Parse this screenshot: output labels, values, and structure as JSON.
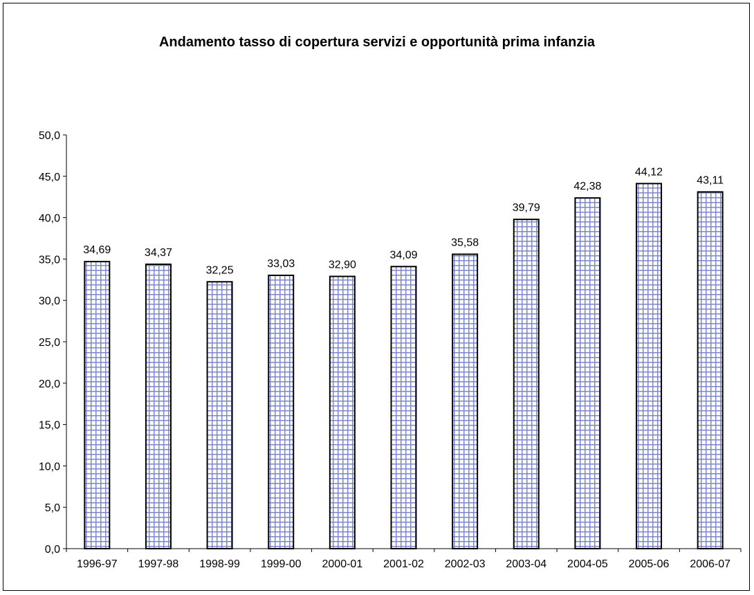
{
  "chart_data": {
    "type": "bar",
    "title": "Andamento tasso di copertura servizi e opportunità prima infanzia",
    "xlabel": "",
    "ylabel": "",
    "categories": [
      "1996-97",
      "1997-98",
      "1998-99",
      "1999-00",
      "2000-01",
      "2001-02",
      "2002-03",
      "2003-04",
      "2004-05",
      "2005-06",
      "2006-07"
    ],
    "values": [
      34.69,
      34.37,
      32.25,
      33.03,
      32.9,
      34.09,
      35.58,
      39.79,
      42.38,
      44.12,
      43.11
    ],
    "value_labels": [
      "34,69",
      "34,37",
      "32,25",
      "33,03",
      "32,90",
      "34,09",
      "35,58",
      "39,79",
      "42,38",
      "44,12",
      "43,11"
    ],
    "ylim": [
      0,
      50
    ],
    "y_ticks": [
      0,
      5,
      10,
      15,
      20,
      25,
      30,
      35,
      40,
      45,
      50
    ],
    "y_tick_labels": [
      "0,0",
      "5,0",
      "10,0",
      "15,0",
      "20,0",
      "25,0",
      "30,0",
      "35,0",
      "40,0",
      "45,0",
      "50,0"
    ],
    "grid": false,
    "legend": "none",
    "colors": {
      "bar_fill": "#ffffff",
      "bar_pattern": "#7b86cc",
      "bar_stroke": "#000000"
    }
  }
}
